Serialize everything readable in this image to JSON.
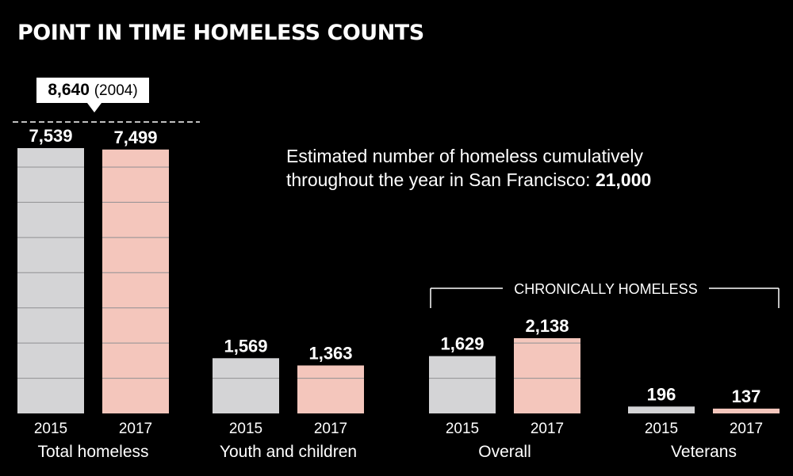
{
  "title": "POINT IN TIME HOMELESS COUNTS",
  "note": {
    "text": "Estimated number of homeless cumulatively",
    "text2": "throughout the year in San Francisco: ",
    "value": "21,000"
  },
  "callout": {
    "value": "8,640",
    "year": "(2004)"
  },
  "bracket_label": "CHRONICALLY HOMELESS",
  "colors": {
    "background": "#000000",
    "y2015": "#d4d4d6",
    "y2017": "#f4c6bc",
    "text": "#ffffff"
  },
  "chart_data": {
    "type": "bar",
    "title": "POINT IN TIME HOMELESS COUNTS",
    "xlabel": "",
    "ylabel": "",
    "ylim": [
      0,
      7600
    ],
    "grid": true,
    "reference": {
      "label": "8,640 (2004)",
      "value": 8640
    },
    "categories": [
      "Total homeless",
      "Youth and children",
      "Overall",
      "Veterans"
    ],
    "series": [
      {
        "name": "2015",
        "values": [
          7539,
          1569,
          1629,
          196
        ],
        "labels": [
          "7,539",
          "1,569",
          "1,629",
          "196"
        ]
      },
      {
        "name": "2017",
        "values": [
          7499,
          1363,
          2138,
          137
        ],
        "labels": [
          "7,499",
          "1,363",
          "2,138",
          "137"
        ]
      }
    ],
    "group_annotation": {
      "label": "CHRONICALLY HOMELESS",
      "categories": [
        "Overall",
        "Veterans"
      ]
    }
  }
}
